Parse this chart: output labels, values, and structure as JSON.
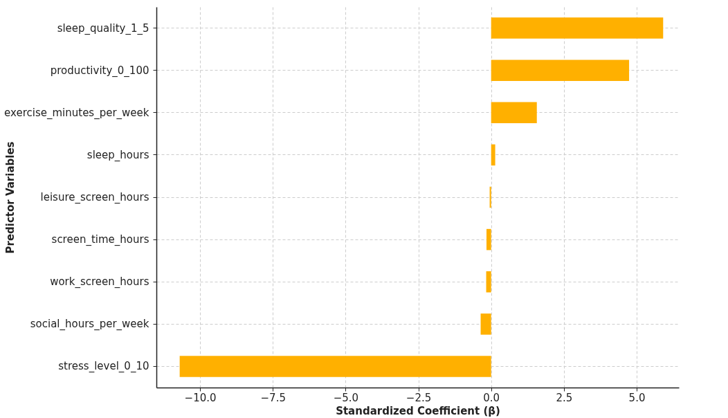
{
  "chart_data": {
    "type": "bar",
    "orientation": "horizontal",
    "xlabel": "Standardized Coefficient (β)",
    "ylabel": "Predictor Variables",
    "categories": [
      "sleep_quality_1_5",
      "productivity_0_100",
      "exercise_minutes_per_week",
      "sleep_hours",
      "leisure_screen_hours",
      "screen_time_hours",
      "work_screen_hours",
      "social_hours_per_week",
      "stress_level_0_10"
    ],
    "values": [
      5.91,
      4.74,
      1.57,
      0.14,
      -0.05,
      -0.16,
      -0.17,
      -0.36,
      -10.7
    ],
    "color": "#ffb000",
    "xlim": [
      -11.5,
      6.45
    ],
    "xticks": [
      {
        "value": -10,
        "label": "−10.0"
      },
      {
        "value": -7.5,
        "label": "−7.5"
      },
      {
        "value": -5,
        "label": "−5.0"
      },
      {
        "value": -2.5,
        "label": "−2.5"
      },
      {
        "value": 0,
        "label": "0.0"
      },
      {
        "value": 2.5,
        "label": "2.5"
      },
      {
        "value": 5,
        "label": "5.0"
      }
    ],
    "grid": true
  }
}
